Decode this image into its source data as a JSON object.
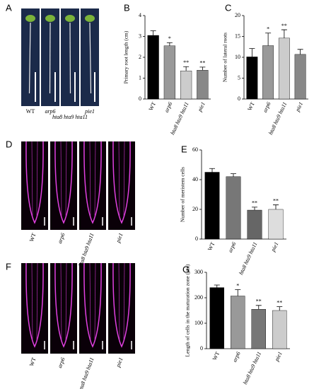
{
  "image_panels": [
    {
      "letter": "A",
      "labels": [
        "WT",
        "arp6",
        "hta8 hta9 hta11",
        "pie1"
      ]
    },
    {
      "letter": "D",
      "labels": [
        "WT",
        "arp6",
        "hta8 hta9 hta11",
        "pie1"
      ]
    },
    {
      "letter": "F",
      "labels": [
        "WT",
        "arp6",
        "hta8 hta9 hta11",
        "pie1"
      ]
    }
  ],
  "chart_data": [
    {
      "type": "bar",
      "panel": "B",
      "ylabel": "Primary root length (cm)",
      "categories": [
        "WT",
        "arp6",
        "hta8 hta9 hta11",
        "pie1"
      ],
      "values": [
        3.05,
        2.55,
        1.35,
        1.38
      ],
      "errors": [
        0.22,
        0.15,
        0.2,
        0.15
      ],
      "annotations": [
        null,
        "*",
        "**",
        "**"
      ],
      "colors": [
        "#000000",
        "#999999",
        "#cccccc",
        "#888888"
      ],
      "ylim": [
        0,
        4
      ],
      "yticks": [
        0,
        1,
        2,
        3,
        4
      ]
    },
    {
      "type": "bar",
      "panel": "C",
      "ylabel": "Number of lateral roots",
      "categories": [
        "WT",
        "arp6",
        "hta8 hta9 hta11",
        "pie1"
      ],
      "values": [
        10.1,
        12.8,
        14.6,
        10.7
      ],
      "errors": [
        2.0,
        3.0,
        2.0,
        1.2
      ],
      "annotations": [
        null,
        "*",
        "**",
        null
      ],
      "colors": [
        "#000000",
        "#999999",
        "#cccccc",
        "#888888"
      ],
      "ylim": [
        0,
        20
      ],
      "yticks": [
        0,
        5,
        10,
        15,
        20
      ]
    },
    {
      "type": "bar",
      "panel": "E",
      "ylabel": "Number of meristem cells",
      "categories": [
        "WT",
        "arp6",
        "hta8 hta9 hta11",
        "pie1"
      ],
      "values": [
        45,
        42,
        19.5,
        20
      ],
      "errors": [
        2.5,
        2,
        2,
        3
      ],
      "annotations": [
        null,
        null,
        "**",
        "**"
      ],
      "colors": [
        "#000000",
        "#777777",
        "#666666",
        "#dddddd"
      ],
      "ylim": [
        0,
        60
      ],
      "yticks": [
        0,
        20,
        40,
        60
      ]
    },
    {
      "type": "bar",
      "panel": "G",
      "ylabel": "Length of cells in the maturation zone (μm)",
      "categories": [
        "WT",
        "arp6",
        "hta8 hta9 hta11",
        "pie1"
      ],
      "values": [
        240,
        207,
        155,
        150
      ],
      "errors": [
        10,
        25,
        15,
        15
      ],
      "annotations": [
        null,
        "*",
        "**",
        "**"
      ],
      "colors": [
        "#000000",
        "#999999",
        "#777777",
        "#cccccc"
      ],
      "ylim": [
        0,
        300
      ],
      "yticks": [
        0,
        100,
        200,
        300
      ]
    }
  ]
}
